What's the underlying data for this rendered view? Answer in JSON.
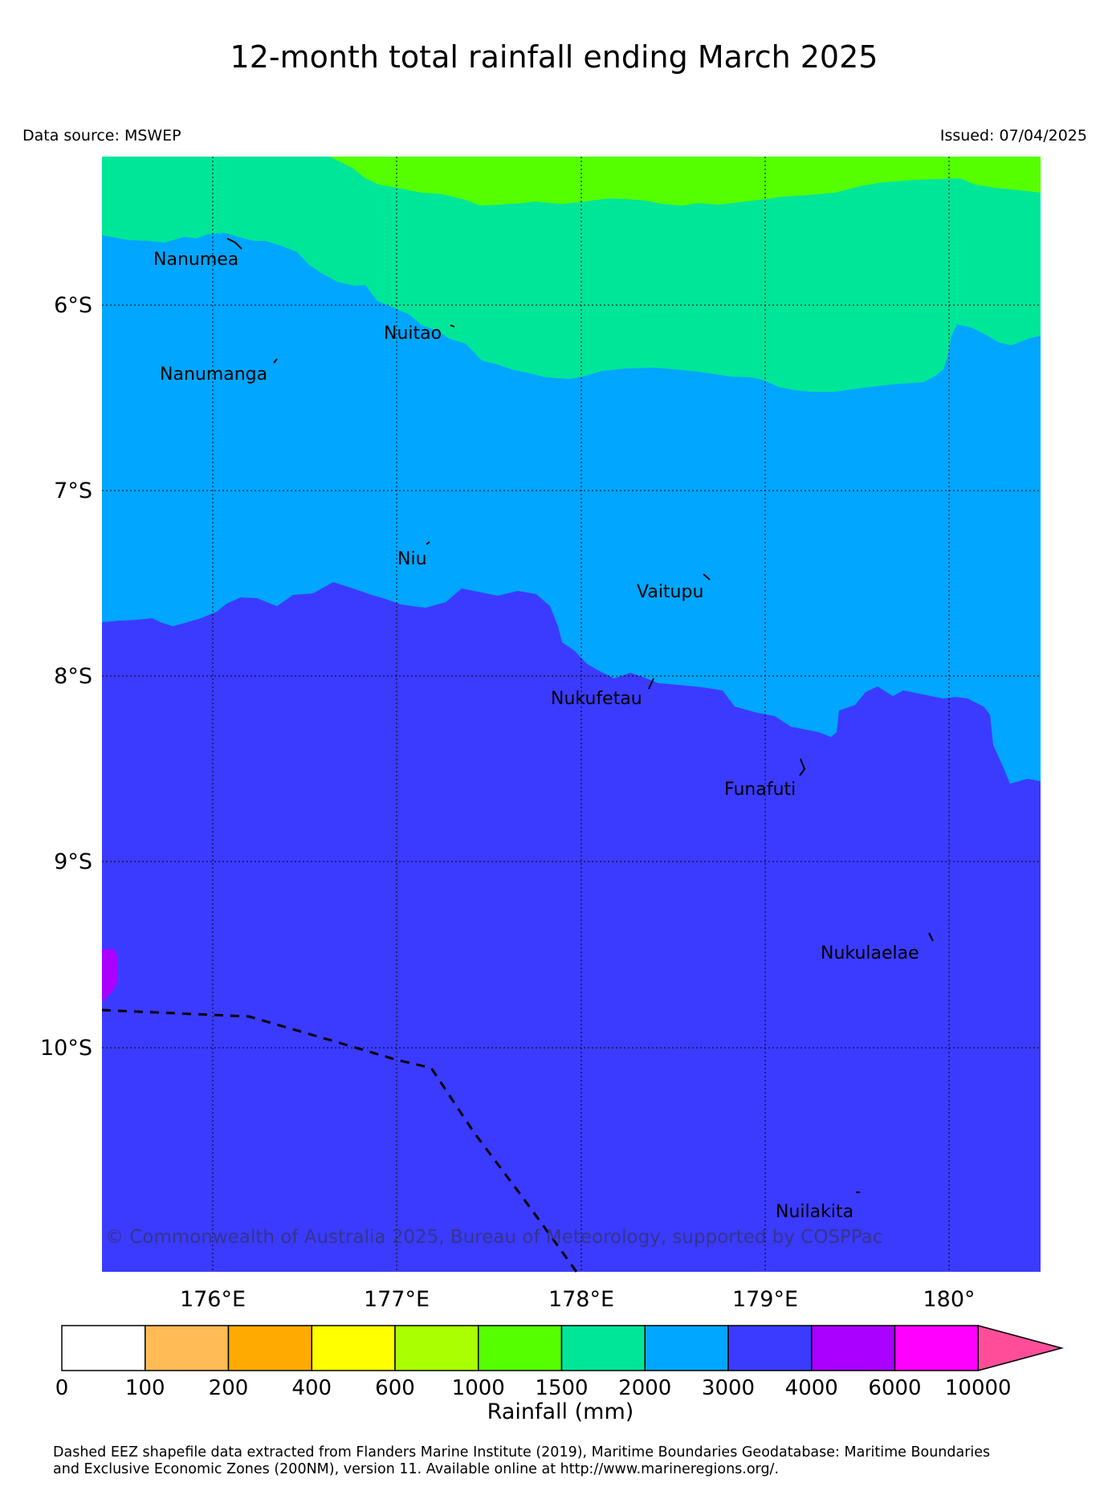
{
  "title": "12-month total rainfall ending March 2025",
  "data_source": "Data source: MSWEP",
  "issued": "Issued: 07/04/2025",
  "copyright": "© Commonwealth of Australia 2025, Bureau of Meteorology, supported by COSPPac",
  "footer": {
    "line1": "Dashed EEZ shapefile data extracted from Flanders Marine Institute (2019), Maritime Boundaries Geodatabase: Maritime Boundaries",
    "line2": "and Exclusive Economic Zones (200NM), version 11. Available online at http://www.marineregions.org/."
  },
  "map": {
    "lat_labels": [
      "6°S",
      "7°S",
      "8°S",
      "9°S",
      "10°S"
    ],
    "lon_labels": [
      "176°E",
      "177°E",
      "178°E",
      "179°E",
      "180°"
    ],
    "islands": [
      "Nanumea",
      "Nuitao",
      "Nanumanga",
      "Niu",
      "Vaitupu",
      "Nukufetau",
      "Funafuti",
      "Nukulaelae",
      "Nuilakita"
    ]
  },
  "colorbar": {
    "label": "Rainfall (mm)",
    "ticks": [
      "0",
      "100",
      "200",
      "400",
      "600",
      "1000",
      "1500",
      "2000",
      "3000",
      "4000",
      "6000",
      "10000"
    ],
    "colors": [
      "#ffffff",
      "#ffbb55",
      "#ffaa00",
      "#ffff00",
      "#aaff00",
      "#55ff00",
      "#00e699",
      "#00a6ff",
      "#3b3bff",
      "#aa00ff",
      "#ff00ff"
    ],
    "extend_color": "#ff4d9a"
  }
}
